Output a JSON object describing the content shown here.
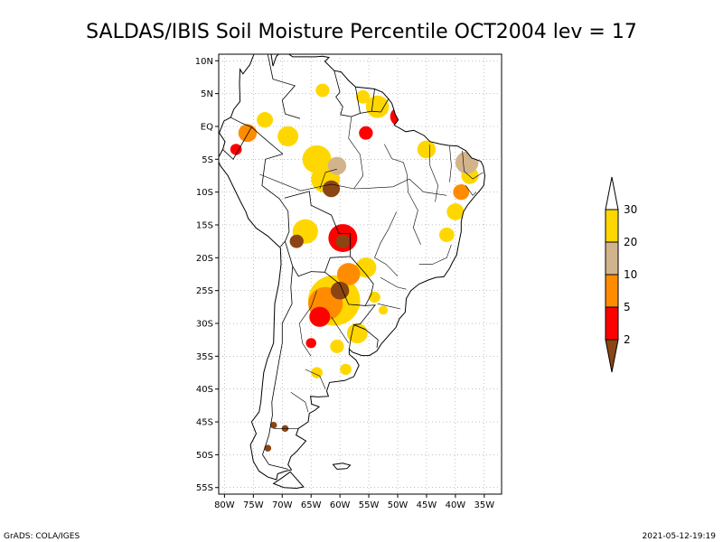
{
  "title": "SALDAS/IBIS Soil Moisture Percentile OCT2004 lev = 17",
  "footer": {
    "left": "GrADS: COLA/IGES",
    "right": "2021-05-12-19:19"
  },
  "axes": {
    "lat_labels": [
      "10N",
      "5N",
      "EQ",
      "5S",
      "10S",
      "15S",
      "20S",
      "25S",
      "30S",
      "35S",
      "40S",
      "45S",
      "50S",
      "55S"
    ],
    "lon_labels": [
      "80W",
      "75W",
      "70W",
      "65W",
      "60W",
      "55W",
      "50W",
      "45W",
      "40W",
      "35W"
    ]
  },
  "legend": {
    "bins": [
      {
        "label": "2",
        "color": "#8b4513"
      },
      {
        "label": "5",
        "color": "#ff0000"
      },
      {
        "label": "10",
        "color": "#ff8c00"
      },
      {
        "label": "20",
        "color": "#d2b48c"
      },
      {
        "label": "30",
        "color": "#ffd700"
      }
    ],
    "top_cap_color": "#ffffff"
  },
  "chart_data": {
    "type": "heatmap",
    "title": "SALDAS/IBIS Soil Moisture Percentile OCT2004 lev = 17",
    "x_range_deg": [
      -81,
      -32
    ],
    "y_range_deg": [
      -56,
      11
    ],
    "x_ticks": [
      -80,
      -75,
      -70,
      -65,
      -60,
      -55,
      -50,
      -45,
      -40,
      -35
    ],
    "y_ticks": [
      10,
      5,
      0,
      -5,
      -10,
      -15,
      -20,
      -25,
      -30,
      -35,
      -40,
      -45,
      -50,
      -55
    ],
    "grid": true,
    "color_levels": [
      2,
      5,
      10,
      20,
      30
    ],
    "regions": [
      {
        "lon": -59.5,
        "lat": -17.0,
        "r": 2.5,
        "cat": "5"
      },
      {
        "lon": -59.5,
        "lat": -17.5,
        "r": 1.2,
        "cat": "2"
      },
      {
        "lon": -61.0,
        "lat": -26.5,
        "r": 4.5,
        "cat": "30"
      },
      {
        "lon": -62.5,
        "lat": -27.0,
        "r": 3.0,
        "cat": "10"
      },
      {
        "lon": -63.5,
        "lat": -29.0,
        "r": 1.8,
        "cat": "5"
      },
      {
        "lon": -60.0,
        "lat": -25.0,
        "r": 1.6,
        "cat": "2"
      },
      {
        "lon": -58.5,
        "lat": -22.5,
        "r": 2.0,
        "cat": "10"
      },
      {
        "lon": -55.5,
        "lat": -21.5,
        "r": 1.8,
        "cat": "30"
      },
      {
        "lon": -66.0,
        "lat": -16.0,
        "r": 2.2,
        "cat": "30"
      },
      {
        "lon": -67.5,
        "lat": -17.5,
        "r": 1.2,
        "cat": "2"
      },
      {
        "lon": -61.5,
        "lat": -9.5,
        "r": 1.5,
        "cat": "2"
      },
      {
        "lon": -62.5,
        "lat": -8.0,
        "r": 2.5,
        "cat": "30"
      },
      {
        "lon": -64.0,
        "lat": -5.0,
        "r": 2.5,
        "cat": "30"
      },
      {
        "lon": -60.5,
        "lat": -6.0,
        "r": 1.6,
        "cat": "20"
      },
      {
        "lon": -49.5,
        "lat": 1.5,
        "r": 1.8,
        "cat": "5"
      },
      {
        "lon": -48.5,
        "lat": 1.0,
        "r": 0.9,
        "cat": "2"
      },
      {
        "lon": -53.5,
        "lat": 3.0,
        "r": 2.0,
        "cat": "30"
      },
      {
        "lon": -55.5,
        "lat": -1.0,
        "r": 1.2,
        "cat": "5"
      },
      {
        "lon": -45.0,
        "lat": -3.5,
        "r": 1.6,
        "cat": "30"
      },
      {
        "lon": -38.0,
        "lat": -5.5,
        "r": 2.0,
        "cat": "20"
      },
      {
        "lon": -37.5,
        "lat": -7.5,
        "r": 1.5,
        "cat": "30"
      },
      {
        "lon": -39.0,
        "lat": -10.0,
        "r": 1.4,
        "cat": "10"
      },
      {
        "lon": -40.0,
        "lat": -13.0,
        "r": 1.5,
        "cat": "30"
      },
      {
        "lon": -41.5,
        "lat": -16.5,
        "r": 1.3,
        "cat": "30"
      },
      {
        "lon": -76.0,
        "lat": -1.0,
        "r": 1.6,
        "cat": "10"
      },
      {
        "lon": -78.0,
        "lat": -3.5,
        "r": 1.0,
        "cat": "5"
      },
      {
        "lon": -73.0,
        "lat": 1.0,
        "r": 1.4,
        "cat": "30"
      },
      {
        "lon": -69.0,
        "lat": -1.5,
        "r": 1.8,
        "cat": "30"
      },
      {
        "lon": -63.0,
        "lat": 5.5,
        "r": 1.2,
        "cat": "30"
      },
      {
        "lon": -56.0,
        "lat": 4.5,
        "r": 1.2,
        "cat": "30"
      },
      {
        "lon": -57.0,
        "lat": -31.5,
        "r": 1.8,
        "cat": "30"
      },
      {
        "lon": -60.5,
        "lat": -33.5,
        "r": 1.2,
        "cat": "30"
      },
      {
        "lon": -65.0,
        "lat": -33.0,
        "r": 0.9,
        "cat": "5"
      },
      {
        "lon": -59.0,
        "lat": -37.0,
        "r": 1.0,
        "cat": "30"
      },
      {
        "lon": -64.0,
        "lat": -37.5,
        "r": 1.0,
        "cat": "30"
      },
      {
        "lon": -69.5,
        "lat": -46.0,
        "r": 0.6,
        "cat": "2"
      },
      {
        "lon": -71.5,
        "lat": -45.5,
        "r": 0.6,
        "cat": "2"
      },
      {
        "lon": -72.5,
        "lat": -49.0,
        "r": 0.6,
        "cat": "2"
      },
      {
        "lon": -54.0,
        "lat": -26.0,
        "r": 1.0,
        "cat": "30"
      },
      {
        "lon": -52.5,
        "lat": -28.0,
        "r": 0.8,
        "cat": "30"
      }
    ]
  }
}
